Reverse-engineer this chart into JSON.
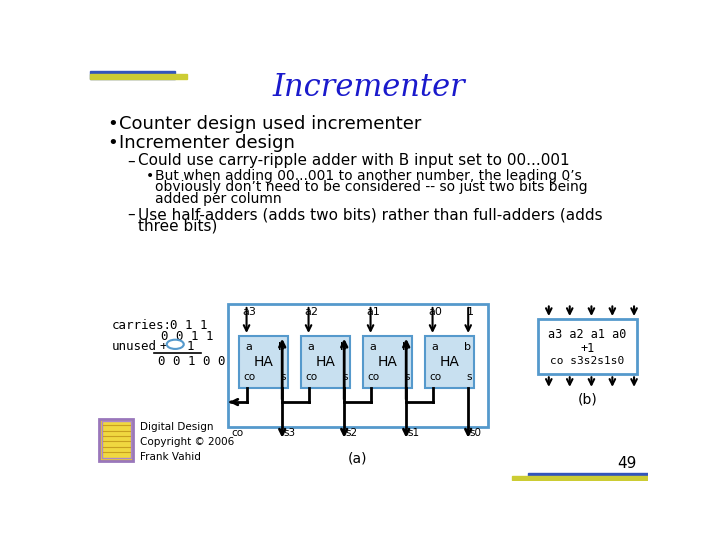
{
  "title": "Incrementer",
  "title_color": "#1a1acc",
  "bg_color": "#ffffff",
  "bullet1": "Counter design used incrementer",
  "bullet2": "Incrementer design",
  "dash1": "Could use carry-ripple adder with B input set to 00...001",
  "sub_bullet1": "But when adding 00...001 to another number, the leading 0’s",
  "sub_bullet2": "obviously don’t need to be considered -- so just two bits being",
  "sub_bullet3": "added per column",
  "dash2a": "Use half-adders (adds two bits) rather than full-adders (adds",
  "dash2b": "three bits)",
  "carries_label": "carries:",
  "carries_vals": "0 1 1",
  "row2": "0 0 1 1",
  "unused_row": "unused",
  "plus_sign": "+",
  "one_val": "1",
  "result": "0 0 1 0 0",
  "label_a": "(a)",
  "label_b": "(b)",
  "ha_labels": [
    "a3",
    "a2",
    "a1",
    "a0"
  ],
  "ha_carry_in": "1",
  "s_labels": [
    "s3",
    "s2",
    "s1",
    "s0"
  ],
  "box_b_line1": "a3 a2 a1 a0",
  "box_b_line2": "+1",
  "box_b_line3": "co s3s2s1s0",
  "page_num": "49",
  "copyright": "Digital Design\nCopyright © 2006\nFrank Vahid",
  "ha_box_color": "#c8e0f0",
  "outer_box_color": "#5599cc",
  "wire_color": "#000000",
  "text_color": "#000000"
}
